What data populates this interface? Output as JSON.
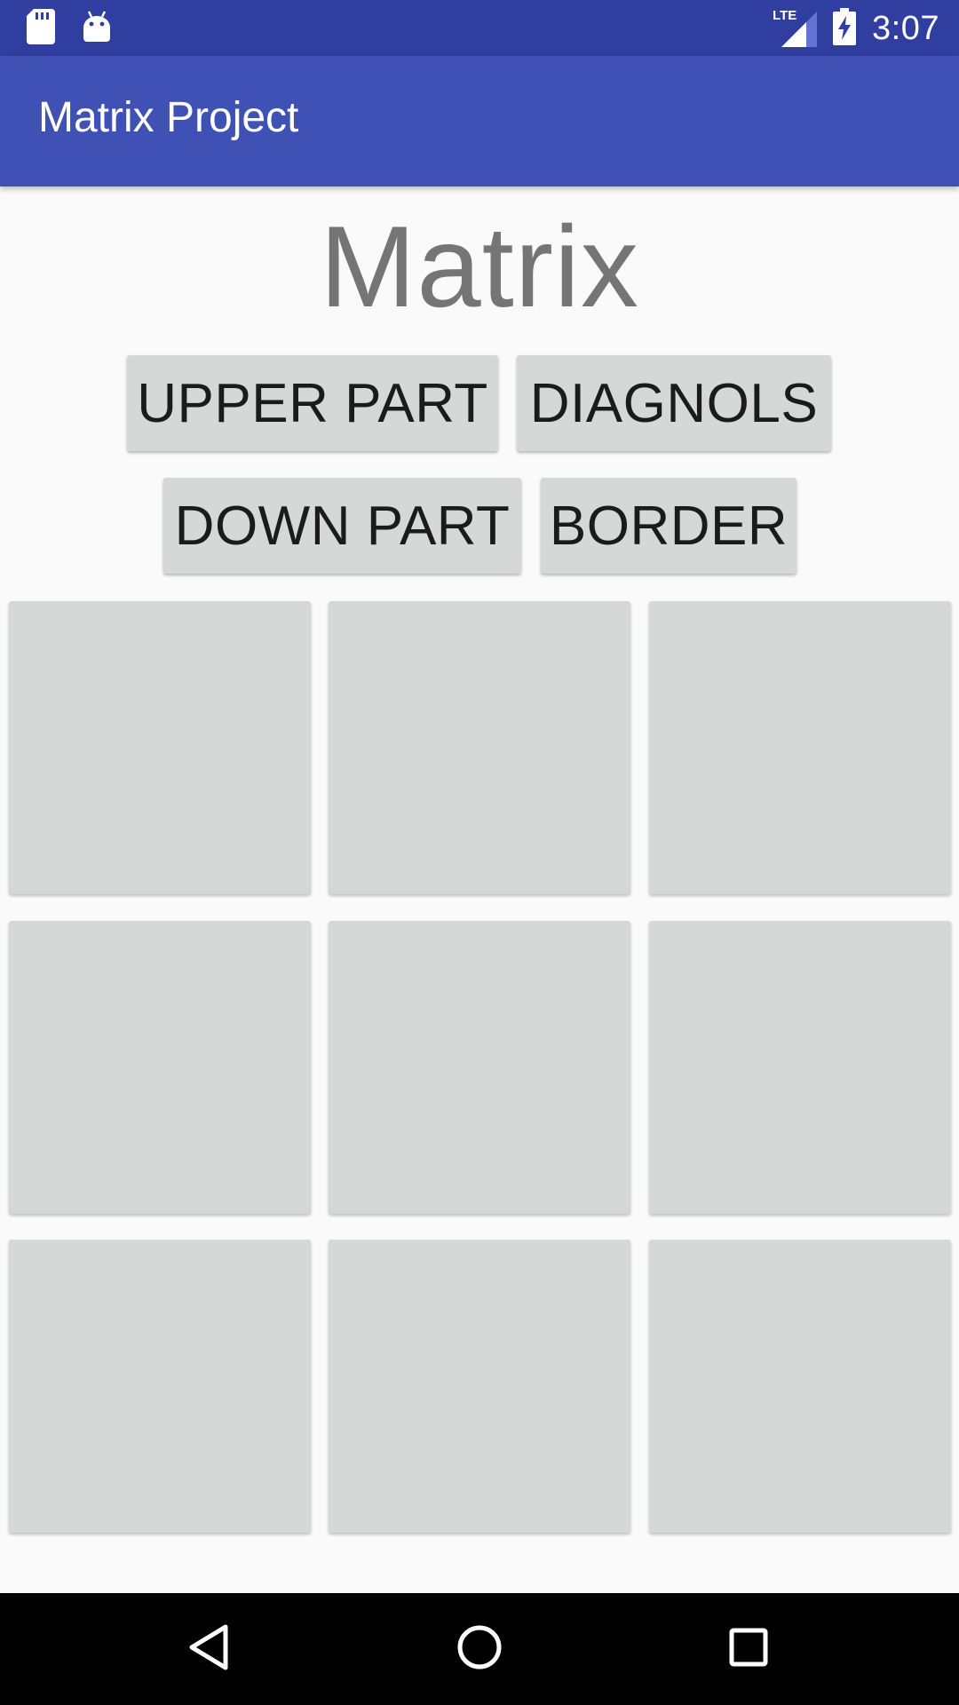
{
  "status_bar": {
    "time": "3:07",
    "network": "LTE",
    "icons": [
      "sd-card-icon",
      "android-icon",
      "lte-signal-icon",
      "battery-charging-icon"
    ]
  },
  "app_bar": {
    "title": "Matrix Project",
    "color": "#3f51b5",
    "status_color": "#303f9f"
  },
  "main": {
    "heading": "Matrix",
    "buttons": [
      {
        "label": "UPPER PART"
      },
      {
        "label": "DIAGNOLS"
      },
      {
        "label": "DOWN PART"
      },
      {
        "label": "BORDER"
      }
    ],
    "grid": {
      "rows": 3,
      "cols": 3,
      "cell_color": "#d6d7d7",
      "cells": [
        "",
        "",
        "",
        "",
        "",
        "",
        "",
        "",
        ""
      ]
    }
  },
  "nav_bar": {
    "icons": [
      "back-icon",
      "home-icon",
      "recents-icon"
    ]
  }
}
